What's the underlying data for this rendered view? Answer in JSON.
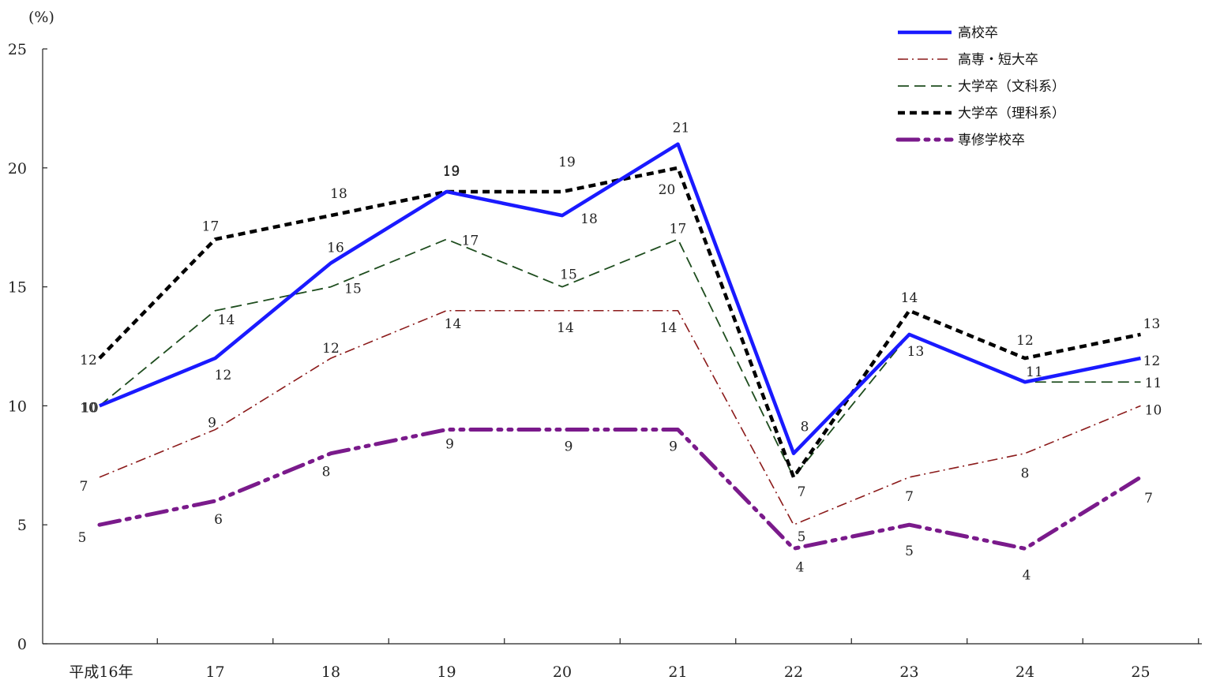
{
  "chart_data": {
    "type": "line",
    "ylabel": "(%)",
    "ylim": [
      0,
      25
    ],
    "yticks": [
      0,
      5,
      10,
      15,
      20,
      25
    ],
    "categories": [
      "平成16年",
      "17",
      "18",
      "19",
      "20",
      "21",
      "22",
      "23",
      "24",
      "25"
    ],
    "legend_position": "top-right",
    "grid": false,
    "series": [
      {
        "name": "高校卒",
        "values": [
          10,
          12,
          16,
          19,
          18,
          21,
          8,
          13,
          11,
          12
        ],
        "color": "#1a1aff",
        "style": "solid-thick"
      },
      {
        "name": "高専・短大卒",
        "values": [
          7,
          9,
          12,
          14,
          14,
          14,
          5,
          7,
          8,
          10
        ],
        "color": "#8b1a1a",
        "style": "dash-dot-thin"
      },
      {
        "name": "大学卒（文科系）",
        "values": [
          10,
          14,
          15,
          17,
          15,
          17,
          7,
          13,
          11,
          11
        ],
        "color": "#1e4d1e",
        "style": "dashed-thin"
      },
      {
        "name": "大学卒（理科系）",
        "values": [
          12,
          17,
          18,
          19,
          19,
          20,
          7,
          14,
          12,
          13
        ],
        "color": "#000000",
        "style": "dotted-thick"
      },
      {
        "name": "専修学校卒",
        "values": [
          5,
          6,
          8,
          9,
          9,
          9,
          4,
          5,
          4,
          7
        ],
        "color": "#7a1a8b",
        "style": "dash-dot-dot-thick"
      }
    ]
  }
}
